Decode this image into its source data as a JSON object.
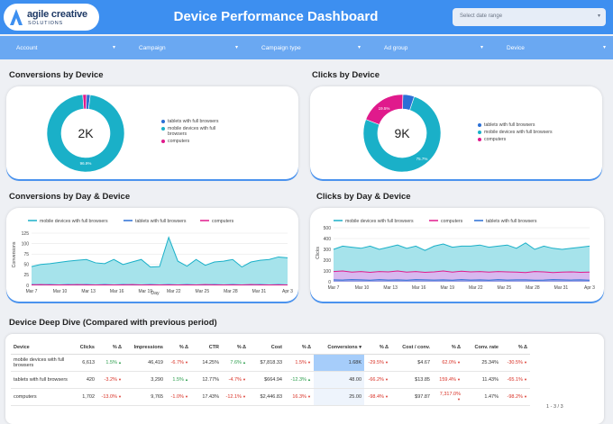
{
  "brand": {
    "name": "agile creative",
    "sub": "SOLUTIONS"
  },
  "header": {
    "title": "Device Performance Dashboard",
    "date_placeholder": "Select date range"
  },
  "filters": [
    {
      "label": "Account"
    },
    {
      "label": "Campaign"
    },
    {
      "label": "Campaign type"
    },
    {
      "label": "Ad group"
    },
    {
      "label": "Device"
    }
  ],
  "colors": {
    "header": "#3d8ff0",
    "filter_bar": "#6aa8f2",
    "mobile": "#1ab0c8",
    "mobile_fill": "#a6e3eb",
    "tablets": "#2b6fd6",
    "computers": "#e01a8c",
    "computers_fill": "#d8b8ef"
  },
  "sections": {
    "conv_device": "Conversions by Device",
    "clicks_device": "Clicks by Device",
    "conv_day": "Conversions by Day & Device",
    "clicks_day": "Clicks by Day & Device",
    "deep_dive": "Device Deep Dive (Compared with previous period)"
  },
  "donut_conv": {
    "center": "2K",
    "legend": [
      "tablets with full browsers",
      "mobile devices with full browsers",
      "computers"
    ],
    "pct_label": "96.9%"
  },
  "donut_clicks": {
    "center": "9K",
    "legend": [
      "tablets with full browsers",
      "mobile devices with full browsers",
      "computers"
    ],
    "pct_big": "75.7%",
    "pct_small": "19.5%"
  },
  "line_conv": {
    "legend": [
      "mobile devices with full browsers",
      "tablets with full browsers",
      "computers"
    ],
    "ylabel": "Conversions",
    "xlabel": "Day",
    "yticks": [
      "0",
      "25",
      "50",
      "75",
      "100",
      "125"
    ],
    "xticks": [
      "Mar 7",
      "Mar 10",
      "Mar 13",
      "Mar 16",
      "Mar 19",
      "Mar 22",
      "Mar 25",
      "Mar 28",
      "Mar 31",
      "Apr 3"
    ]
  },
  "line_clicks": {
    "legend": [
      "mobile devices with full browsers",
      "computers",
      "tablets with full browsers"
    ],
    "ylabel": "Clicks",
    "yticks": [
      "0",
      "100",
      "200",
      "300",
      "400",
      "500"
    ],
    "xticks": [
      "Mar 7",
      "Mar 10",
      "Mar 13",
      "Mar 16",
      "Mar 19",
      "Mar 22",
      "Mar 25",
      "Mar 28",
      "Mar 31",
      "Apr 3"
    ]
  },
  "chart_data": [
    {
      "type": "pie",
      "title": "Conversions by Device",
      "categories": [
        "tablets with full browsers",
        "mobile devices with full browsers",
        "computers"
      ],
      "values": [
        1.6,
        96.9,
        1.5
      ],
      "center_label": "2K"
    },
    {
      "type": "pie",
      "title": "Clicks by Device",
      "categories": [
        "tablets with full browsers",
        "mobile devices with full browsers",
        "computers"
      ],
      "values": [
        4.8,
        75.7,
        19.5
      ],
      "center_label": "9K"
    },
    {
      "type": "area",
      "title": "Conversions by Day & Device",
      "xlabel": "Day",
      "ylabel": "Conversions",
      "ylim": [
        0,
        125
      ],
      "x": [
        1,
        2,
        3,
        4,
        5,
        6,
        7,
        8,
        9,
        10,
        11,
        12,
        13,
        14,
        15,
        16,
        17,
        18,
        19,
        20,
        21,
        22,
        23,
        24,
        25,
        26,
        27,
        28,
        29
      ],
      "series": [
        {
          "name": "mobile devices with full browsers",
          "values": [
            45,
            50,
            52,
            55,
            58,
            60,
            62,
            54,
            52,
            62,
            50,
            56,
            62,
            44,
            45,
            115,
            58,
            46,
            62,
            48,
            56,
            58,
            62,
            44,
            56,
            60,
            62,
            68,
            66
          ]
        },
        {
          "name": "tablets with full browsers",
          "values": [
            2,
            1,
            2,
            1,
            2,
            1,
            2,
            1,
            2,
            1,
            2,
            1,
            1,
            2,
            1,
            2,
            1,
            2,
            1,
            1,
            2,
            1,
            2,
            1,
            1,
            2,
            1,
            2,
            1
          ]
        },
        {
          "name": "computers",
          "values": [
            1,
            2,
            1,
            1,
            1,
            2,
            1,
            1,
            1,
            1,
            1,
            2,
            1,
            1,
            1,
            1,
            1,
            1,
            1,
            2,
            1,
            1,
            1,
            1,
            2,
            1,
            1,
            1,
            1
          ]
        }
      ]
    },
    {
      "type": "area",
      "title": "Clicks by Day & Device",
      "xlabel": "",
      "ylabel": "Clicks",
      "ylim": [
        0,
        500
      ],
      "x": [
        1,
        2,
        3,
        4,
        5,
        6,
        7,
        8,
        9,
        10,
        11,
        12,
        13,
        14,
        15,
        16,
        17,
        18,
        19,
        20,
        21,
        22,
        23,
        24,
        25,
        26,
        27,
        28,
        29
      ],
      "series": [
        {
          "name": "mobile devices with full browsers",
          "values": [
            300,
            330,
            320,
            310,
            330,
            300,
            320,
            340,
            310,
            330,
            290,
            330,
            350,
            320,
            330,
            330,
            340,
            320,
            330,
            340,
            310,
            360,
            300,
            330,
            310,
            300,
            310,
            320,
            330
          ]
        },
        {
          "name": "computers",
          "values": [
            95,
            100,
            90,
            95,
            88,
            95,
            92,
            100,
            90,
            95,
            88,
            92,
            100,
            90,
            98,
            92,
            95,
            90,
            95,
            92,
            90,
            85,
            95,
            92,
            85,
            90,
            92,
            88,
            90
          ]
        },
        {
          "name": "tablets with full browsers",
          "values": [
            18,
            16,
            20,
            18,
            15,
            20,
            16,
            18,
            15,
            20,
            18,
            16,
            18,
            15,
            20,
            16,
            18,
            15,
            20,
            16,
            18,
            18,
            15,
            16,
            20,
            18,
            16,
            18,
            15
          ]
        }
      ]
    }
  ],
  "table": {
    "headers": [
      "Device",
      "Clicks",
      "% Δ",
      "Impressions",
      "% Δ",
      "CTR",
      "% Δ",
      "Cost",
      "% Δ",
      "Conversions ▾",
      "% Δ",
      "Cost / conv.",
      "% Δ",
      "Conv. rate",
      "% Δ"
    ],
    "rows": [
      [
        "mobile devices with full browsers",
        "6,613",
        "1.5%",
        "46,419",
        "-6.7%",
        "14.25%",
        "7.6%",
        "$7,818.33",
        "1.5%",
        "1.68K",
        "-29.5%",
        "$4.67",
        "62.0%",
        "25.34%",
        "-30.5%"
      ],
      [
        "tablets with full browsers",
        "420",
        "-3.2%",
        "3,290",
        "1.5%",
        "12.77%",
        "-4.7%",
        "$664.94",
        "-12.3%",
        "48.00",
        "-66.2%",
        "$13.85",
        "159.4%",
        "11.43%",
        "-65.1%"
      ],
      [
        "computers",
        "1,702",
        "-13.0%",
        "9,765",
        "-1.0%",
        "17.43%",
        "-12.1%",
        "$2,446.83",
        "16.3%",
        "25.00",
        "-98.4%",
        "$97.87",
        "7,317.0%",
        "1.47%",
        "-98.2%"
      ]
    ],
    "pager": "1 - 3 / 3"
  }
}
